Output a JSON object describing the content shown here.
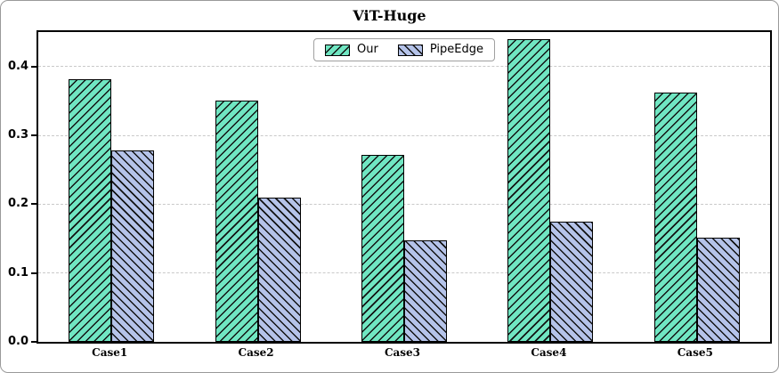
{
  "chart_data": {
    "type": "bar",
    "title": "ViT-Huge",
    "categories": [
      "Case1",
      "Case2",
      "Case3",
      "Case4",
      "Case5"
    ],
    "series": [
      {
        "name": "Our",
        "color": "#70e6c2",
        "hatch": "/",
        "values": [
          0.382,
          0.351,
          0.272,
          0.44,
          0.362
        ]
      },
      {
        "name": "PipeEdge",
        "color": "#b5c3e9",
        "hatch": "\\",
        "values": [
          0.278,
          0.209,
          0.148,
          0.175,
          0.151
        ]
      }
    ],
    "yticks": [
      0.0,
      0.1,
      0.2,
      0.3,
      0.4
    ],
    "ylim": [
      0,
      0.45
    ],
    "xlabel": "",
    "ylabel": "",
    "grid": "horizontal dashed",
    "legend_position": "upper center",
    "legend_labels": [
      "Our",
      "PipeEdge"
    ]
  }
}
